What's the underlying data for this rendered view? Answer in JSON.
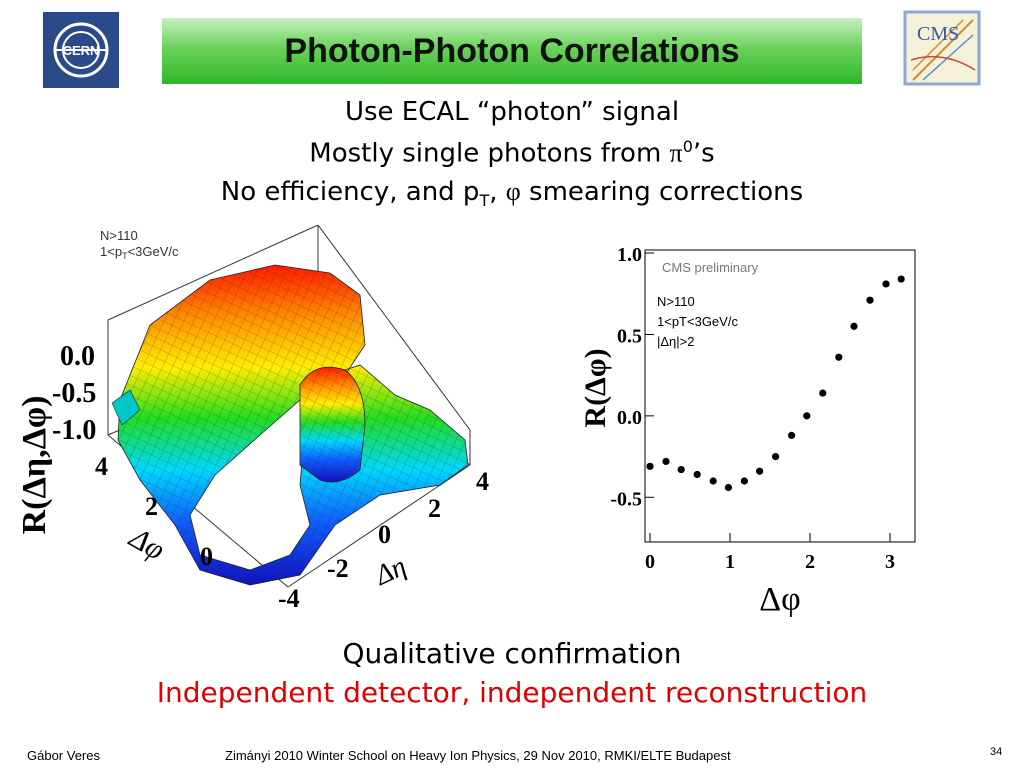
{
  "header": {
    "title": "Photon-Photon Correlations",
    "left_logo_icon": "cern-logo-icon",
    "left_logo_text": "CERN",
    "right_logo_icon": "cms-logo-icon",
    "right_logo_text": "CMS"
  },
  "bullets": {
    "line1": "Use ECAL “photon” signal",
    "line2_pre": "Mostly single photons from ",
    "line2_pi": "π",
    "line2_sup": "0",
    "line2_post": "’s",
    "line3_pre": "No efficiency, and p",
    "line3_sub": "T",
    "line3_mid": ", ",
    "line3_phi": "φ",
    "line3_post": " smearing corrections"
  },
  "plot3d": {
    "label_n": "N>110",
    "label_pt_pre": "1<p",
    "label_pt_sub": "T",
    "label_pt_post": "<3GeV/c",
    "zlabel": "R(Δη,Δφ)",
    "ztick_0": "0.0",
    "ztick_1": "-0.5",
    "ztick_2": "-1.0",
    "phi_tick_4": "4",
    "phi_tick_2": "2",
    "phi_tick_0": "0",
    "phi_label": "Δφ",
    "eta_tick_m4": "-4",
    "eta_tick_m2": "-2",
    "eta_tick_0": "0",
    "eta_tick_2": "2",
    "eta_tick_4": "4",
    "eta_label": "Δη"
  },
  "chart_data": {
    "type": "scatter",
    "title": "",
    "annotations": [
      "CMS preliminary",
      "N>110",
      "1<pT<3GeV/c",
      "|Δη|>2"
    ],
    "xlabel": "Δφ",
    "ylabel": "R(Δφ)",
    "xlim": [
      0,
      3.25
    ],
    "ylim": [
      -0.75,
      1.0
    ],
    "xticks": [
      "0",
      "1",
      "2",
      "3"
    ],
    "yticks": [
      "1.0",
      "0.5",
      "0.0",
      "-0.5"
    ],
    "x": [
      0.0,
      0.2,
      0.39,
      0.59,
      0.79,
      0.98,
      1.18,
      1.37,
      1.57,
      1.77,
      1.96,
      2.16,
      2.36,
      2.55,
      2.75,
      2.95,
      3.14
    ],
    "y": [
      -0.31,
      -0.28,
      -0.33,
      -0.36,
      -0.4,
      -0.44,
      -0.4,
      -0.34,
      -0.25,
      -0.12,
      0.0,
      0.14,
      0.36,
      0.55,
      0.71,
      0.81,
      0.84
    ]
  },
  "captions": {
    "line1": "Qualitative confirmation",
    "line2": "Independent detector, independent reconstruction",
    "line2_color": "#e00000"
  },
  "footer": {
    "author": "Gábor Veres",
    "event": "Zimányi 2010 Winter School on Heavy Ion Physics, 29 Nov 2010, RMKI/ELTE Budapest",
    "page": "34"
  }
}
